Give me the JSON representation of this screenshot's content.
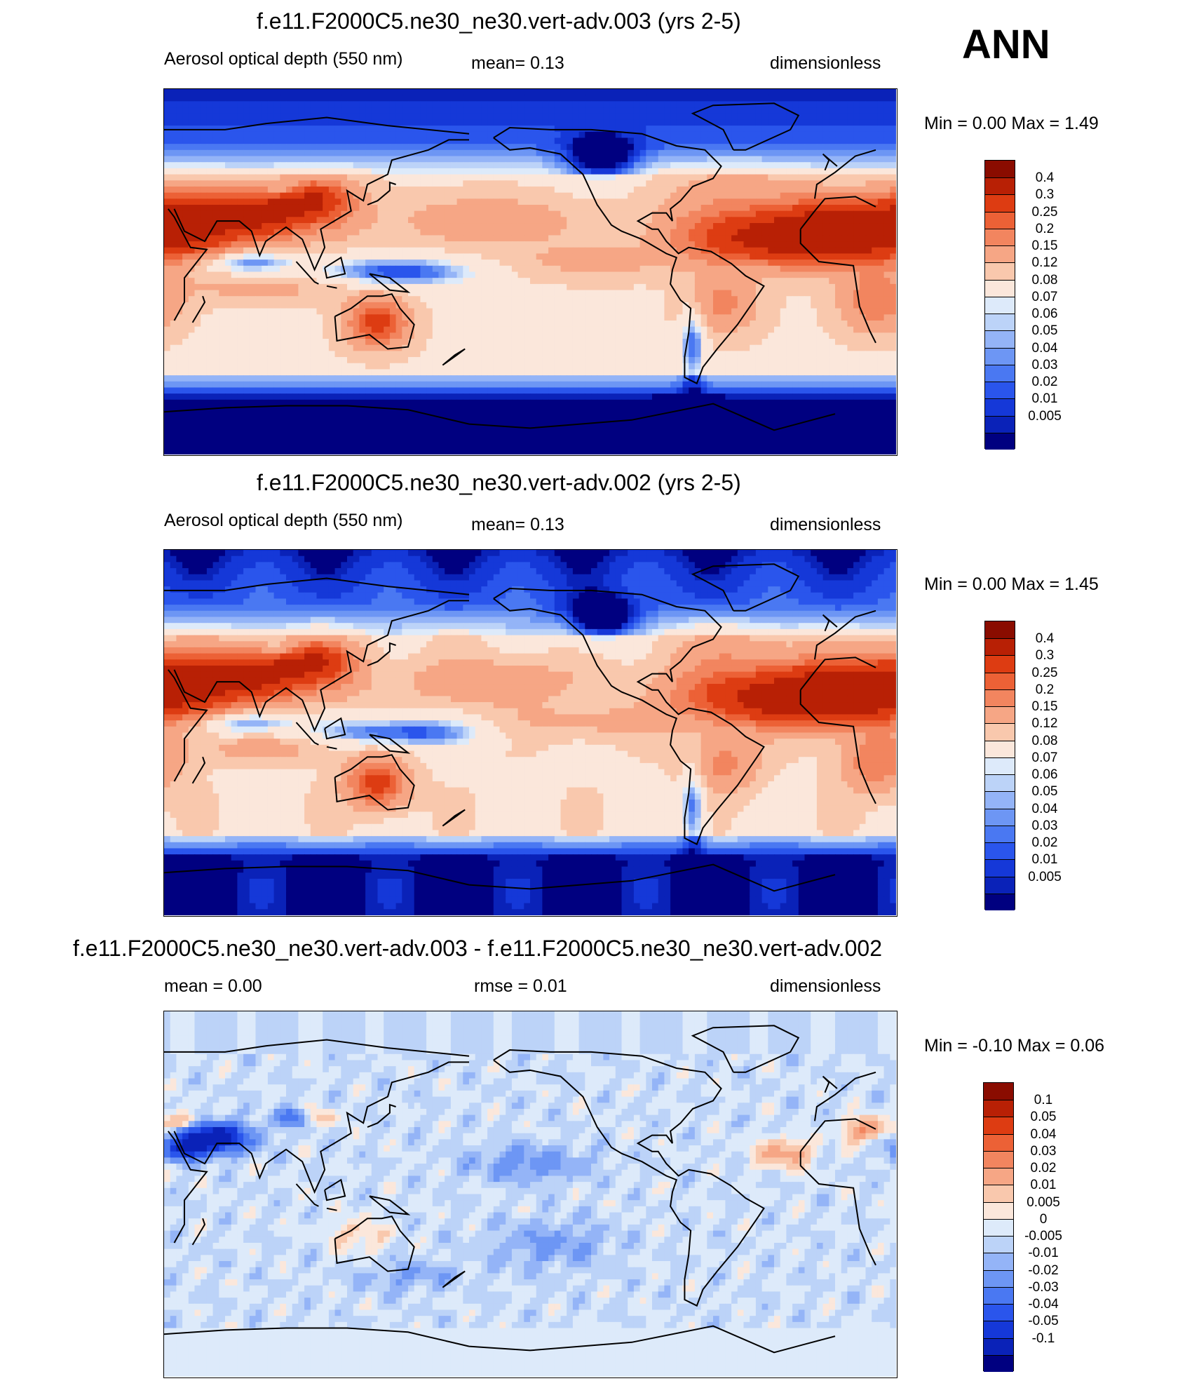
{
  "season": "ANN",
  "palettes": {
    "main": [
      "#000080",
      "#0a22b8",
      "#1538d8",
      "#2a55ec",
      "#4a78f2",
      "#6d96f4",
      "#94b4f7",
      "#bcd3f8",
      "#ddeafa",
      "#fbe7db",
      "#f9c8ad",
      "#f6a685",
      "#f2855f",
      "#ec6136",
      "#dd3c12",
      "#b82005",
      "#8a0c00"
    ],
    "diff": [
      "#000080",
      "#0a22b8",
      "#1538d8",
      "#2a55ec",
      "#4a78f2",
      "#6d96f4",
      "#94b4f7",
      "#bcd3f8",
      "#ddeafa",
      "#fbe7db",
      "#f9c8ad",
      "#f6a685",
      "#f2855f",
      "#ec6136",
      "#dd3c12",
      "#b82005",
      "#8a0c00"
    ]
  },
  "panels": [
    {
      "title": "f.e11.F2000C5.ne30_ne30.vert-adv.003 (yrs 2-5)",
      "left_label": "Aerosol optical depth (550 nm)",
      "center_label": "mean=   0.13",
      "right_label": "dimensionless",
      "minmax": "Min =    0.00 Max =    1.49",
      "map_type": "aod",
      "variant": 0
    },
    {
      "title": "f.e11.F2000C5.ne30_ne30.vert-adv.002 (yrs 2-5)",
      "left_label": "Aerosol optical depth (550 nm)",
      "center_label": "mean=   0.13",
      "right_label": "dimensionless",
      "minmax": "Min =    0.00 Max =    1.45",
      "map_type": "aod",
      "variant": 1
    },
    {
      "title": "f.e11.F2000C5.ne30_ne30.vert-adv.003 - f.e11.F2000C5.ne30_ne30.vert-adv.002",
      "left_label": "mean =    0.00",
      "center_label": "rmse =    0.01",
      "right_label": "dimensionless",
      "minmax": "Min =  -0.10 Max =    0.06",
      "map_type": "diff",
      "variant": 2
    }
  ],
  "colorbars": [
    {
      "palette": "main",
      "labels": [
        "0.4",
        "0.3",
        "0.25",
        "0.2",
        "0.15",
        "0.12",
        "0.08",
        "0.07",
        "0.06",
        "0.05",
        "0.04",
        "0.03",
        "0.02",
        "0.01",
        "0.005"
      ]
    },
    {
      "palette": "main",
      "labels": [
        "0.4",
        "0.3",
        "0.25",
        "0.2",
        "0.15",
        "0.12",
        "0.08",
        "0.07",
        "0.06",
        "0.05",
        "0.04",
        "0.03",
        "0.02",
        "0.01",
        "0.005"
      ]
    },
    {
      "palette": "diff",
      "labels": [
        "0.1",
        "0.05",
        "0.04",
        "0.03",
        "0.02",
        "0.01",
        "0.005",
        "0",
        "-0.005",
        "-0.01",
        "-0.02",
        "-0.03",
        "-0.04",
        "-0.05",
        "-0.1"
      ]
    }
  ]
}
